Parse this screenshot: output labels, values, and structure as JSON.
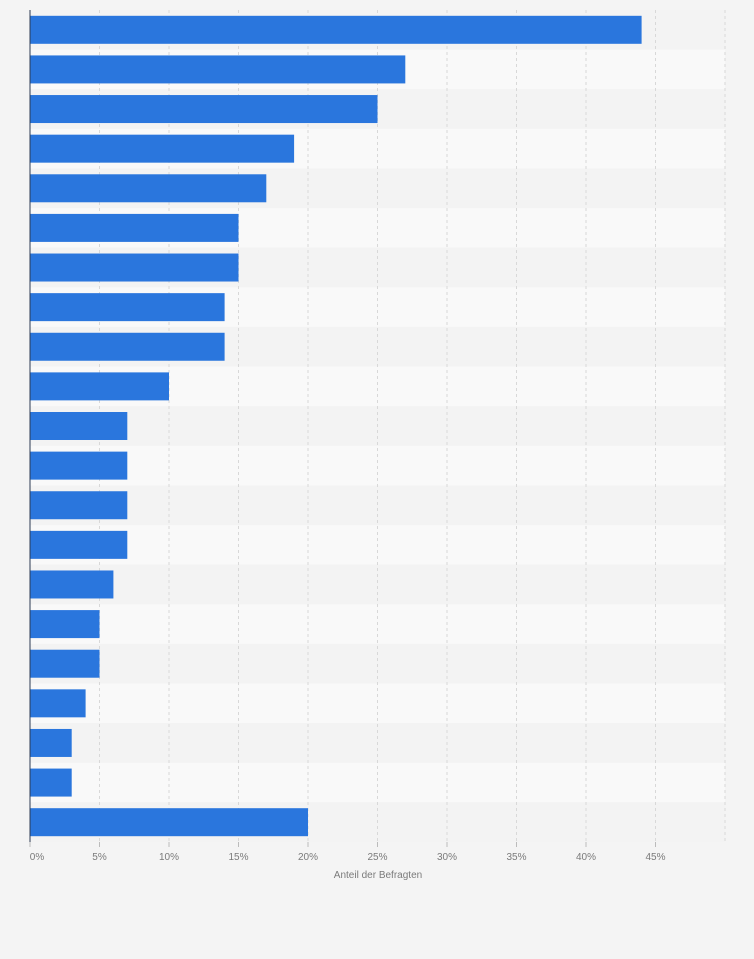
{
  "chart_data": {
    "type": "bar",
    "orientation": "horizontal",
    "title": "",
    "xlabel": "Anteil der Befragten",
    "ylabel": "",
    "xlim": [
      0,
      50
    ],
    "xticks": [
      0,
      5,
      10,
      15,
      20,
      25,
      30,
      35,
      40,
      45
    ],
    "tick_suffix": "%",
    "grid": true,
    "bar_color": "#2a76dd",
    "values": [
      44,
      27,
      25,
      19,
      17,
      15,
      15,
      14,
      14,
      10,
      7,
      7,
      7,
      7,
      6,
      5,
      5,
      4,
      3,
      3,
      20
    ]
  }
}
